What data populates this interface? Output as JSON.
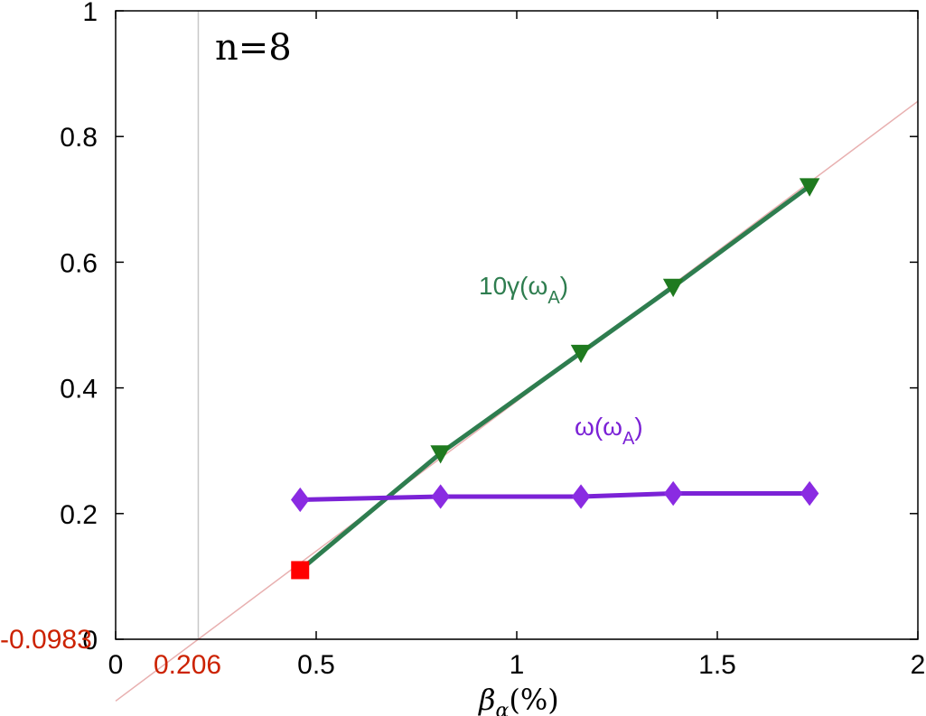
{
  "chart_data": {
    "type": "line",
    "panel_label": "n=8",
    "xlabel": {
      "main": "β",
      "sub": "α",
      "rest": "(%)"
    },
    "xlim": [
      0,
      2
    ],
    "ylim": [
      0,
      1
    ],
    "xticks": [
      0,
      0.5,
      1,
      1.5,
      2
    ],
    "xtick_labels": [
      "0",
      "0.5",
      "1",
      "1.5",
      "2"
    ],
    "yticks": [
      0,
      0.2,
      0.4,
      0.6,
      0.8,
      1
    ],
    "ytick_labels": [
      "0",
      "0.2",
      "0.4",
      "0.6",
      "0.8",
      "1"
    ],
    "series": [
      {
        "name_main": "10γ(ω",
        "name_sub": "A",
        "name_close": ")",
        "color": "#2e7d4f",
        "marker_color": "#1f7a1f",
        "marker": "triangle-down",
        "x": [
          0.81,
          1.16,
          1.39,
          1.73
        ],
        "y": [
          0.296,
          0.456,
          0.561,
          0.721
        ]
      },
      {
        "name_main": "ω(ω",
        "name_sub": "A",
        "name_close": ")",
        "color": "#7b22d6",
        "marker_color": "#8a2be2",
        "marker": "diamond",
        "x": [
          0.46,
          0.81,
          1.16,
          1.39,
          1.73
        ],
        "y": [
          0.222,
          0.227,
          0.227,
          0.232,
          0.232
        ]
      }
    ],
    "extrapolated_point": {
      "x": 0.46,
      "y": 0.11,
      "color": "#ff0000",
      "marker": "square"
    },
    "fit_line": {
      "color": "#e8b0b0",
      "x_intercept": 0.206,
      "y_intercept": -0.0983,
      "x_intercept_label": "0.206",
      "y_intercept_label": "-0.0983",
      "label_color": "#cc2200"
    },
    "reference_lines": {
      "vertical_x": 0.206,
      "horizontal_y": 0,
      "color": "#c8c8c8"
    }
  }
}
